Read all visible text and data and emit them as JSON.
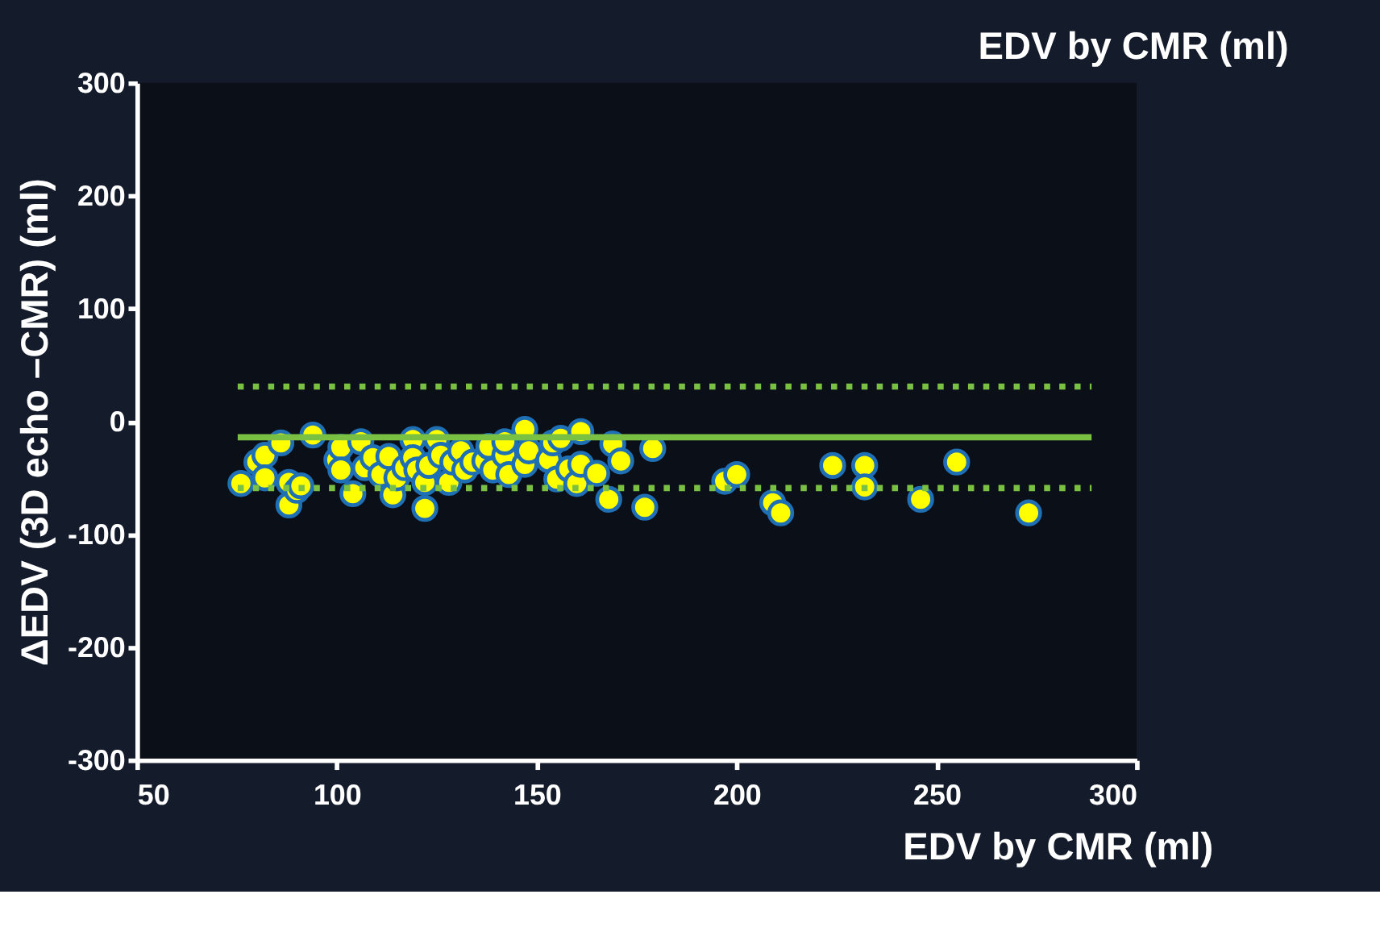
{
  "chart_data": {
    "type": "scatter",
    "title": "EDV by CMR (ml)",
    "xlabel": "EDV by CMR (ml)",
    "ylabel": "ΔEDV (3D echo –CMR) (ml)",
    "x": [
      76,
      80,
      82,
      82,
      86,
      88,
      88,
      90,
      91,
      94,
      100,
      101,
      101,
      104,
      106,
      107,
      109,
      111,
      113,
      114,
      115,
      117,
      119,
      119,
      120,
      122,
      122,
      123,
      125,
      126,
      128,
      129,
      131,
      132,
      134,
      137,
      138,
      139,
      142,
      142,
      143,
      147,
      147,
      148,
      153,
      154,
      155,
      156,
      158,
      160,
      161,
      161,
      165,
      168,
      169,
      171,
      177,
      179,
      197,
      200,
      209,
      211,
      224,
      232,
      232,
      246,
      255,
      273
    ],
    "series": [
      {
        "color": "#ffff00",
        "values": [
          -55,
          -36,
          -30,
          -50,
          -19,
          -54,
          -74,
          -61,
          -57,
          -12,
          -34,
          -23,
          -43,
          -64,
          -18,
          -41,
          -32,
          -47,
          -31,
          -65,
          -50,
          -41,
          -16,
          -32,
          -43,
          -77,
          -54,
          -39,
          -16,
          -30,
          -54,
          -36,
          -26,
          -43,
          -36,
          -35,
          -22,
          -43,
          -30,
          -18,
          -47,
          -7,
          -38,
          -26,
          -34,
          -19,
          -51,
          -15,
          -42,
          -55,
          -9,
          -38,
          -46,
          -69,
          -20,
          -35,
          -76,
          -24,
          -53,
          -47,
          -72,
          -81,
          -39,
          -39,
          -58,
          -69,
          -36,
          -81
        ]
      }
    ],
    "marker": "circle",
    "xlim": [
      50,
      300
    ],
    "xticks": [
      50,
      100,
      150,
      200,
      250,
      300
    ],
    "ylim": [
      -300,
      300
    ],
    "yticks": [
      -300,
      -200,
      -100,
      0,
      100,
      200,
      300
    ],
    "ref_lines": [
      {
        "axis": "y",
        "value": -14,
        "label": null,
        "color": "#7ac143",
        "line_style": "solid"
      },
      {
        "axis": "y",
        "value": 31,
        "label": null,
        "color": "#7ac143",
        "line_style": "dotted"
      },
      {
        "axis": "y",
        "value": -59,
        "label": null,
        "color": "#7ac143",
        "line_style": "dotted"
      }
    ],
    "grid": false
  }
}
